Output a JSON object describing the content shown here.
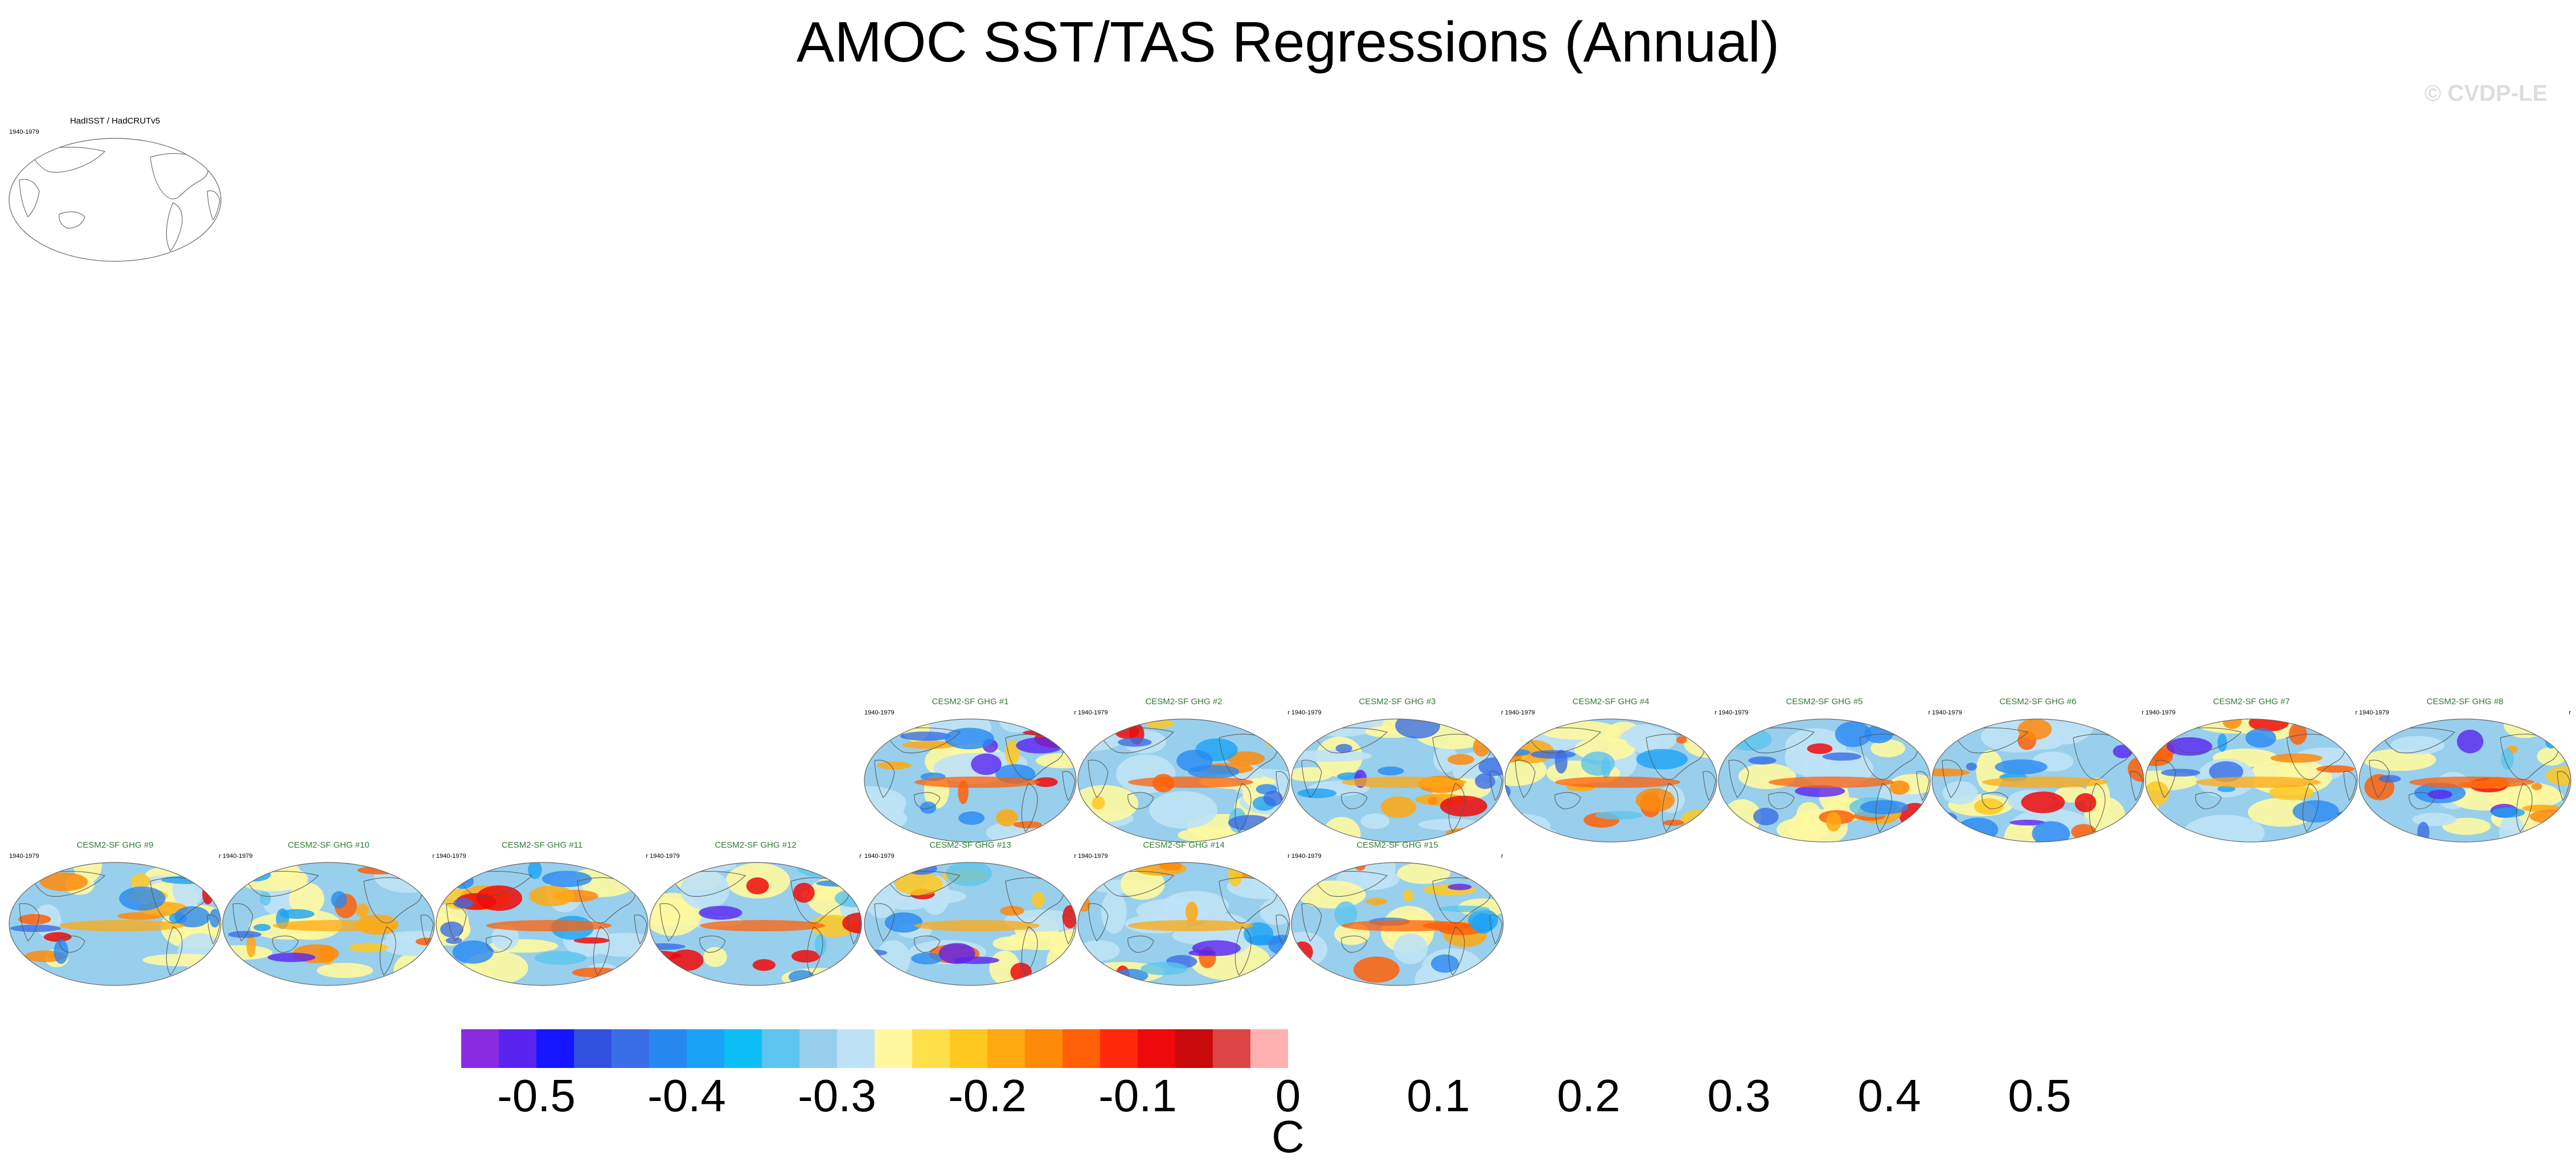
{
  "title": "AMOC SST/TAS Regressions (Annual)",
  "copyright": "© CVDP-LE",
  "colorbar": {
    "colors": [
      "#8a2be2",
      "#5a24f0",
      "#1515ff",
      "#3050e0",
      "#3a6ee6",
      "#2888f2",
      "#1aa2f6",
      "#0dbef6",
      "#5cc4ee",
      "#98cfec",
      "#bfe2f6",
      "#fff8a0",
      "#ffe04a",
      "#ffc820",
      "#ffa810",
      "#ff8a0a",
      "#ff6008",
      "#ff2a0a",
      "#ee0a0a",
      "#c80a0a",
      "#dd4444",
      "#ffb0b0"
    ],
    "tick_labels": [
      "-0.5",
      "-0.4",
      "-0.3",
      "-0.2",
      "-0.1",
      "0",
      "0.1",
      "0.2",
      "0.3",
      "0.4",
      "0.5"
    ],
    "unit": "C"
  },
  "panels": [
    {
      "title": "HadISST / HadCRUTv5",
      "years": "1940-1979",
      "corner": "",
      "kind": "obs"
    },
    {
      "title": "CESM2-SF GHG #1",
      "years": "1940-1979",
      "corner": "r",
      "kind": "model"
    },
    {
      "title": "CESM2-SF GHG #2",
      "years": "1940-1979",
      "corner": "r",
      "kind": "model"
    },
    {
      "title": "CESM2-SF GHG #3",
      "years": "1940-1979",
      "corner": "r",
      "kind": "model"
    },
    {
      "title": "CESM2-SF GHG #4",
      "years": "1940-1979",
      "corner": "r",
      "kind": "model"
    },
    {
      "title": "CESM2-SF GHG #5",
      "years": "1940-1979",
      "corner": "r",
      "kind": "model"
    },
    {
      "title": "CESM2-SF GHG #6",
      "years": "1940-1979",
      "corner": "r",
      "kind": "model"
    },
    {
      "title": "CESM2-SF GHG #7",
      "years": "1940-1979",
      "corner": "r",
      "kind": "model"
    },
    {
      "title": "CESM2-SF GHG #8",
      "years": "1940-1979",
      "corner": "r",
      "kind": "model"
    },
    {
      "title": "CESM2-SF GHG #9",
      "years": "1940-1979",
      "corner": "r",
      "kind": "model"
    },
    {
      "title": "CESM2-SF GHG #10",
      "years": "1940-1979",
      "corner": "r",
      "kind": "model"
    },
    {
      "title": "CESM2-SF GHG #11",
      "years": "1940-1979",
      "corner": "r",
      "kind": "model"
    },
    {
      "title": "CESM2-SF GHG #12",
      "years": "1940-1979",
      "corner": "r",
      "kind": "model"
    },
    {
      "title": "CESM2-SF GHG #13",
      "years": "1940-1979",
      "corner": "r",
      "kind": "model"
    },
    {
      "title": "CESM2-SF GHG #14",
      "years": "1940-1979",
      "corner": "r",
      "kind": "model"
    },
    {
      "title": "CESM2-SF GHG #15",
      "years": "1940-1979",
      "corner": "r",
      "kind": "model"
    }
  ]
}
